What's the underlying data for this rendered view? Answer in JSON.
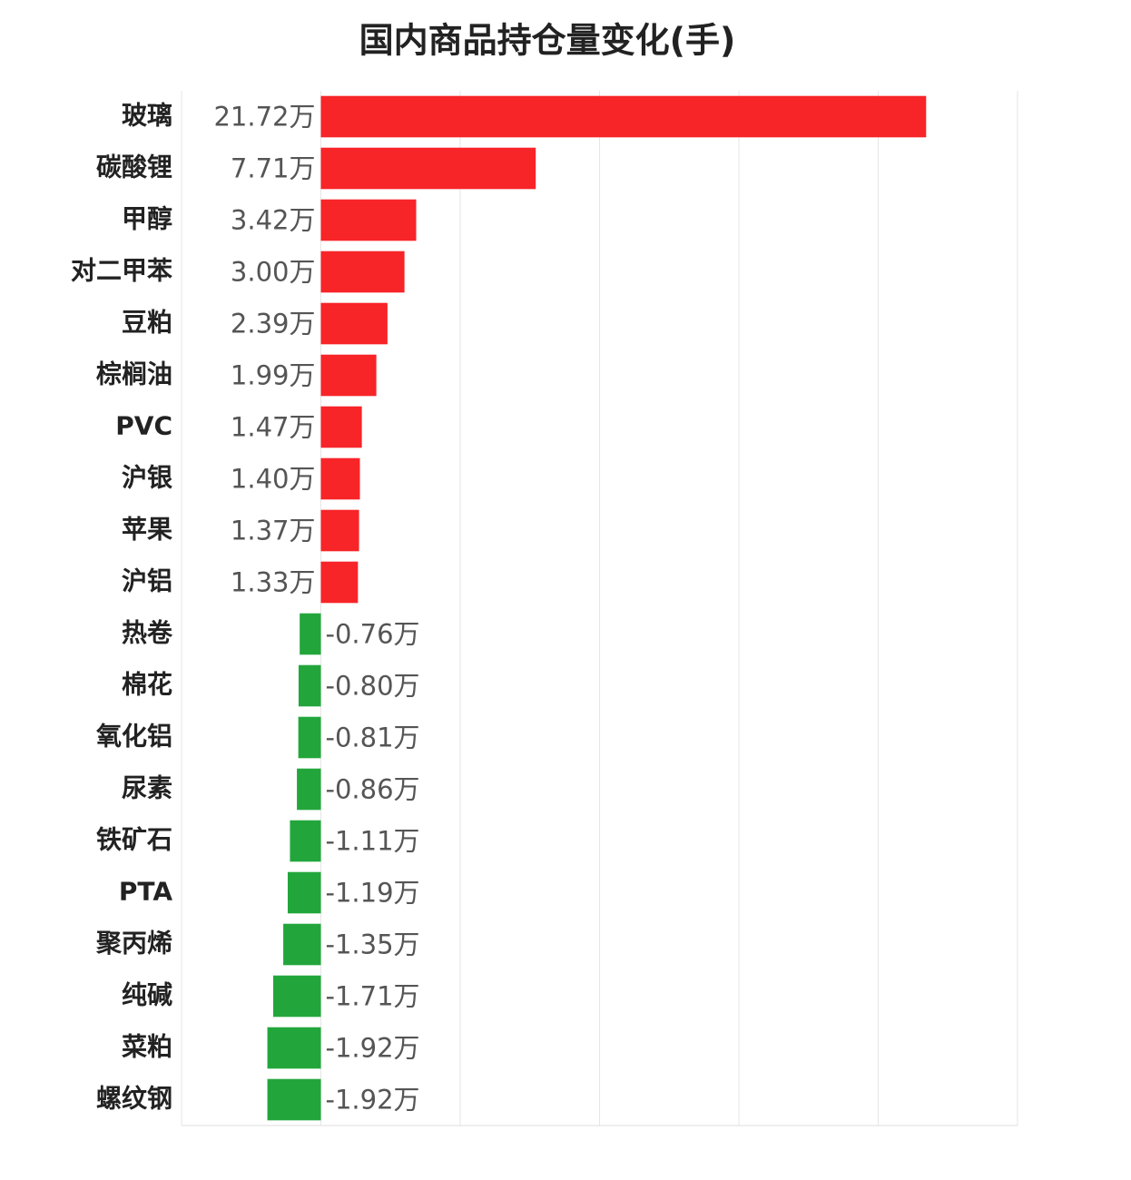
{
  "chart_data": {
    "type": "hbar",
    "title": "国内商品持仓量变化(手)",
    "categories": [
      "玻璃",
      "碳酸锂",
      "甲醇",
      "对二甲苯",
      "豆粕",
      "棕榈油",
      "PVC",
      "沪银",
      "苹果",
      "沪铝",
      "热卷",
      "棉花",
      "氧化铝",
      "尿素",
      "铁矿石",
      "PTA",
      "聚丙烯",
      "纯碱",
      "菜粕",
      "螺纹钢"
    ],
    "values": [
      21.72,
      7.71,
      3.42,
      3.0,
      2.39,
      1.99,
      1.47,
      1.4,
      1.37,
      1.33,
      -0.76,
      -0.8,
      -0.81,
      -0.86,
      -1.11,
      -1.19,
      -1.35,
      -1.71,
      -1.92,
      -1.92
    ],
    "value_labels": [
      "21.72万",
      "7.71万",
      "3.42万",
      "3.00万",
      "2.39万",
      "1.99万",
      "1.47万",
      "1.40万",
      "1.37万",
      "1.33万",
      "-0.76万",
      "-0.80万",
      "-0.81万",
      "-0.86万",
      "-1.11万",
      "-1.19万",
      "-1.35万",
      "-1.71万",
      "-1.92万",
      "-1.92万"
    ],
    "positive_color": "#f72428",
    "negative_color": "#22a63b",
    "xlim": [
      -5,
      25
    ],
    "xticks": [
      -5,
      0,
      5,
      10,
      15,
      20,
      25
    ],
    "grid": true
  }
}
